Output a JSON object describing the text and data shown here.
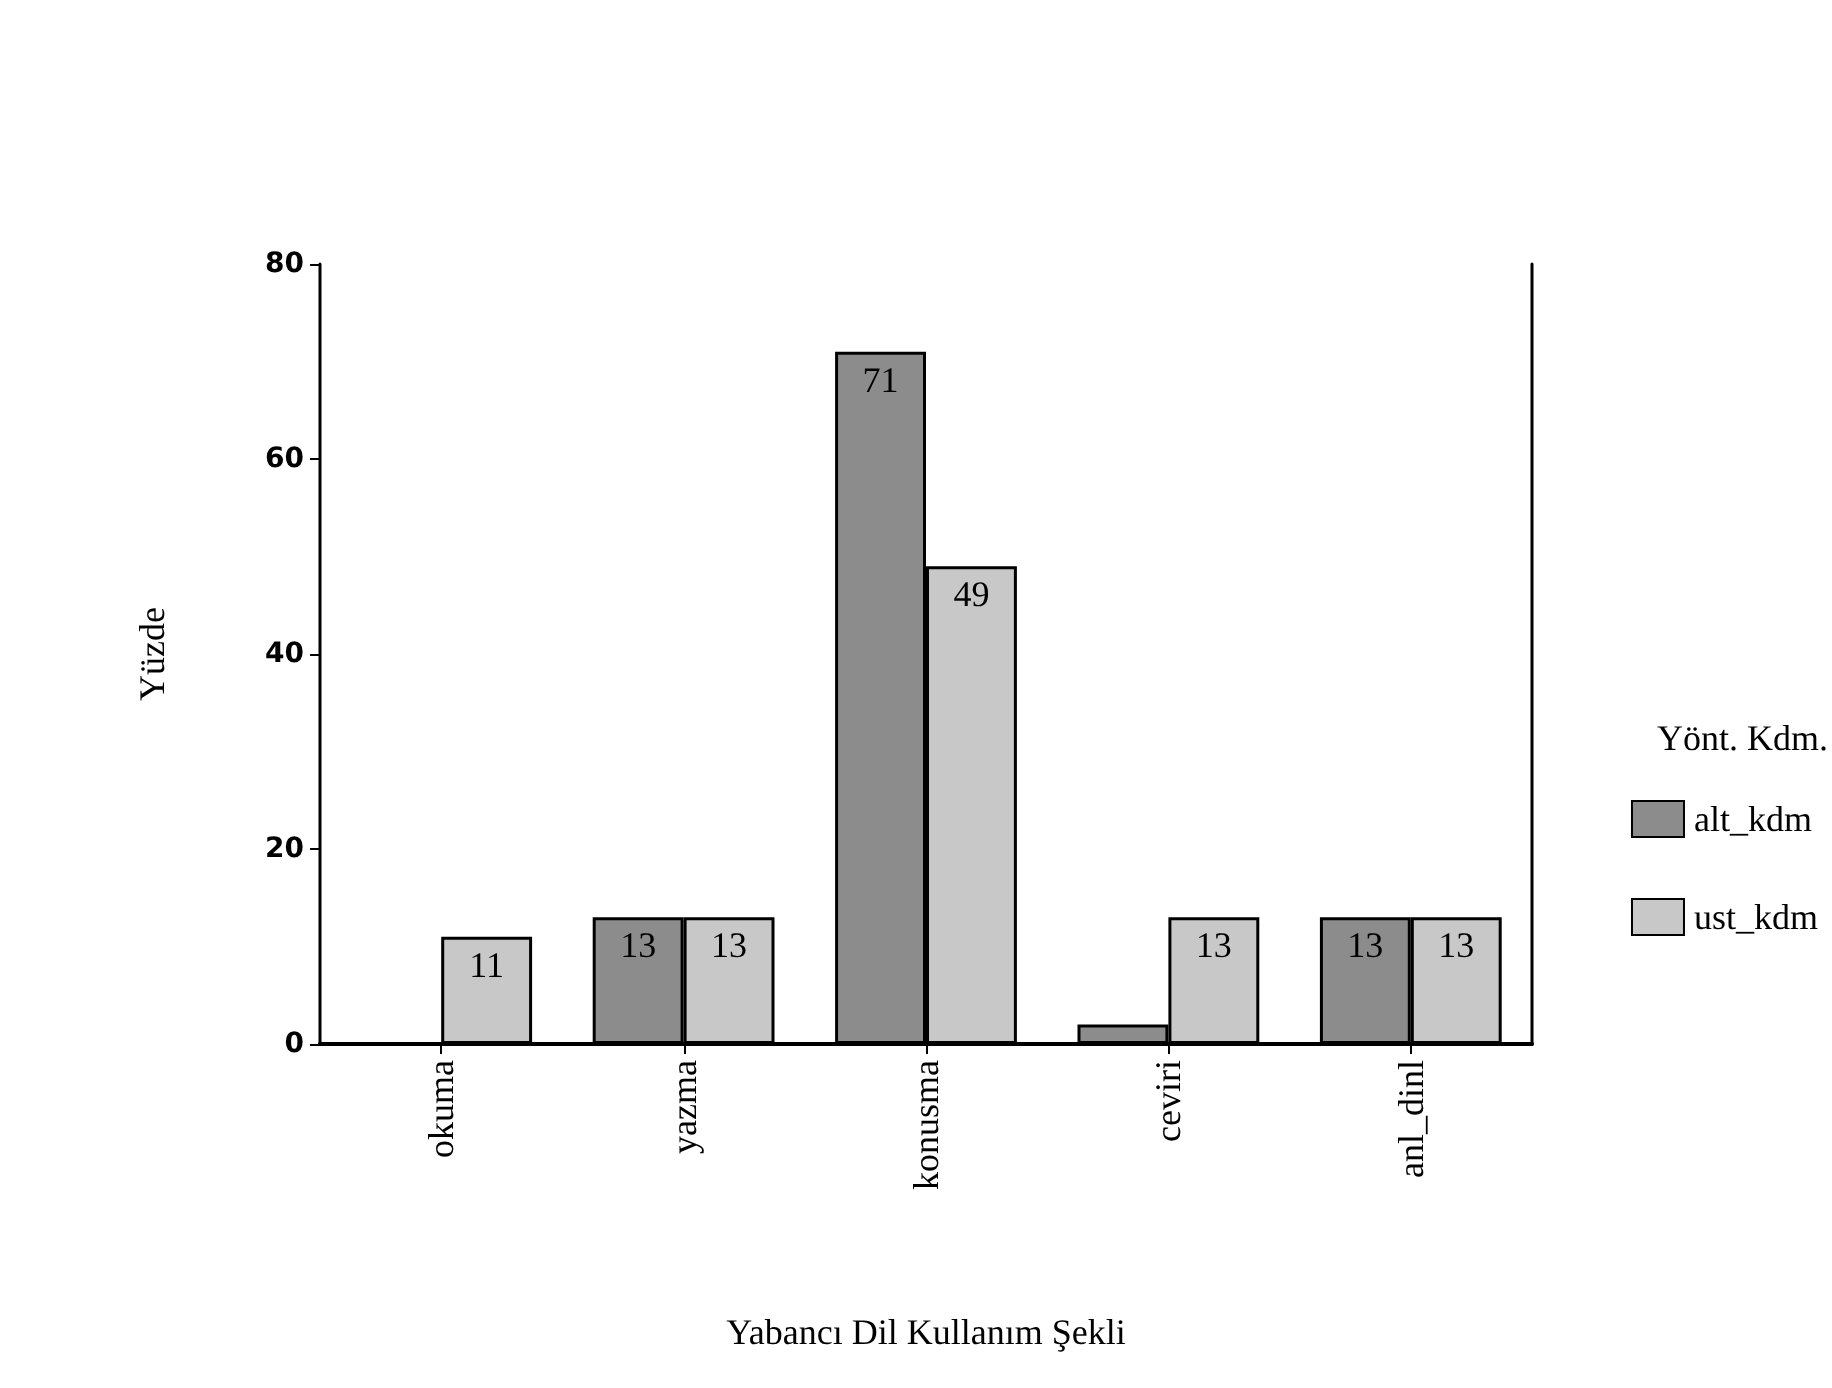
{
  "chart_data": {
    "type": "bar",
    "xlabel": "Yabancı Dil Kullanım Şekli",
    "ylabel": "Yüzde",
    "legend_title": "Yönt. Kdm.",
    "categories": [
      "okuma",
      "yazma",
      "konusma",
      "ceviri",
      "anl_dinl"
    ],
    "series": [
      {
        "name": "alt_kdm",
        "color": "#8c8c8c",
        "values": [
          null,
          13,
          71,
          2,
          13
        ],
        "value_labels": [
          null,
          "13",
          "71",
          null,
          "13"
        ]
      },
      {
        "name": "ust_kdm",
        "color": "#c8c8c8",
        "values": [
          11,
          13,
          49,
          13,
          13
        ],
        "value_labels": [
          "11",
          "13",
          "49",
          "13",
          "13"
        ]
      }
    ],
    "ylim": [
      0,
      80
    ],
    "yticks": [
      0,
      20,
      40,
      60,
      80
    ],
    "grid": false,
    "legend": "right"
  }
}
